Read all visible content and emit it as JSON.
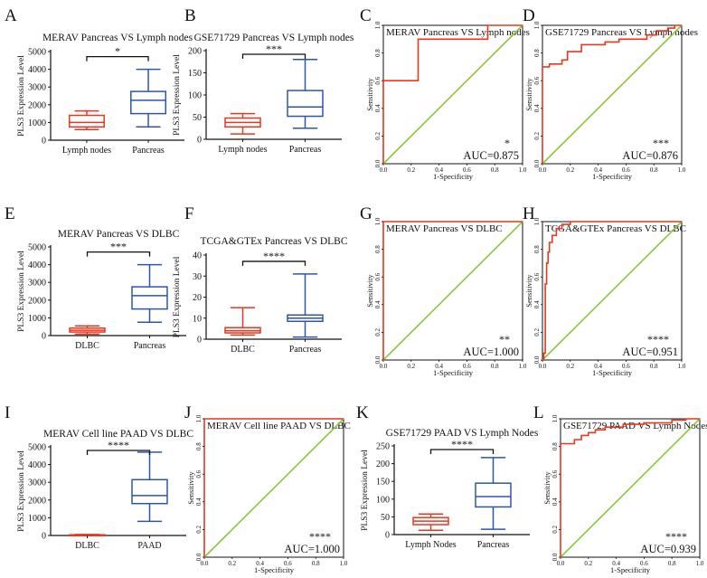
{
  "figure": {
    "colors": {
      "red": "#e8371f",
      "blue": "#2e56a6",
      "green": "#8cc63f",
      "roc": "#e8371f",
      "axis": "#111111"
    },
    "panels": [
      {
        "letter": "A",
        "type": "box",
        "title": "MERAV Pancreas VS Lymph nodes",
        "ylabel": "PLS3 Expression Level",
        "ylim": [
          0,
          5000
        ],
        "yticks": [
          "0",
          "1000",
          "2000",
          "3000",
          "4000",
          "5000"
        ],
        "sig": "*",
        "groups": [
          {
            "label": "Lymph nodes",
            "color": "red",
            "min": 600,
            "q1": 750,
            "median": 1000,
            "q3": 1400,
            "max": 1650
          },
          {
            "label": "Pancreas",
            "color": "blue",
            "min": 750,
            "q1": 1500,
            "median": 2250,
            "q3": 2750,
            "max": 4000
          }
        ]
      },
      {
        "letter": "B",
        "type": "box",
        "title": "GSE71729 Pancreas VS Lymph nodes",
        "ylabel": "PLS3 Expression Level",
        "ylim": [
          0,
          200
        ],
        "yticks": [
          "0",
          "50",
          "100",
          "150",
          "200"
        ],
        "sig": "***",
        "groups": [
          {
            "label": "Lymph nodes",
            "color": "red",
            "min": 12,
            "q1": 28,
            "median": 38,
            "q3": 48,
            "max": 58
          },
          {
            "label": "Pancreas",
            "color": "blue",
            "min": 25,
            "q1": 52,
            "median": 73,
            "q3": 110,
            "max": 180
          }
        ]
      },
      {
        "letter": "C",
        "type": "roc",
        "title": "MERAV Pancreas VS Lymph nodes",
        "sig": "*",
        "auc": "AUC=0.875",
        "xlabel": "1-Specificity",
        "ylabel": "Sensitivity",
        "xticks": [
          "0.0",
          "0.2",
          "0.4",
          "0.6",
          "0.8",
          "1.0"
        ],
        "yticks": [
          "0.0",
          "0.2",
          "0.4",
          "0.6",
          "0.8",
          "1.0"
        ],
        "curve": [
          [
            0,
            0
          ],
          [
            0,
            0.6
          ],
          [
            0.25,
            0.6
          ],
          [
            0.25,
            0.9
          ],
          [
            0.75,
            0.9
          ],
          [
            0.75,
            1
          ],
          [
            1,
            1
          ]
        ]
      },
      {
        "letter": "D",
        "type": "roc",
        "title": "GSE71729 Pancreas VS Lymph nodes",
        "sig": "***",
        "auc": "AUC=0.876",
        "xlabel": "1-Specificity",
        "ylabel": "Sensitivity",
        "xticks": [
          "0.0",
          "0.2",
          "0.4",
          "0.6",
          "0.8",
          "1.0"
        ],
        "yticks": [
          "0.0",
          "0.2",
          "0.4",
          "0.6",
          "0.8",
          "1.0"
        ],
        "curve": [
          [
            0,
            0
          ],
          [
            0,
            0.7
          ],
          [
            0.05,
            0.7
          ],
          [
            0.05,
            0.72
          ],
          [
            0.14,
            0.72
          ],
          [
            0.14,
            0.75
          ],
          [
            0.18,
            0.75
          ],
          [
            0.18,
            0.81
          ],
          [
            0.28,
            0.81
          ],
          [
            0.28,
            0.86
          ],
          [
            0.45,
            0.86
          ],
          [
            0.45,
            0.88
          ],
          [
            0.55,
            0.88
          ],
          [
            0.55,
            0.9
          ],
          [
            0.75,
            0.9
          ],
          [
            0.75,
            0.93
          ],
          [
            0.82,
            0.93
          ],
          [
            0.82,
            0.96
          ],
          [
            0.9,
            0.96
          ],
          [
            0.9,
            0.98
          ],
          [
            0.95,
            0.98
          ],
          [
            0.95,
            1
          ],
          [
            1,
            1
          ]
        ]
      },
      {
        "letter": "E",
        "type": "box",
        "title": "MERAV Pancreas VS DLBC",
        "ylabel": "PLS3 Expression Level",
        "ylim": [
          0,
          5000
        ],
        "yticks": [
          "0",
          "1000",
          "2000",
          "3000",
          "4000",
          "5000"
        ],
        "sig": "***",
        "groups": [
          {
            "label": "DLBC",
            "color": "red",
            "min": 80,
            "q1": 200,
            "median": 300,
            "q3": 420,
            "max": 550
          },
          {
            "label": "Pancreas",
            "color": "blue",
            "min": 750,
            "q1": 1500,
            "median": 2250,
            "q3": 2750,
            "max": 4000
          }
        ]
      },
      {
        "letter": "F",
        "type": "box",
        "title": "TCGA&GTEx Pancreas VS DLBC",
        "ylabel": "PLS3 Expression Level",
        "ylim": [
          0,
          40
        ],
        "yticks": [
          "0",
          "10",
          "20",
          "30",
          "40"
        ],
        "sig": "****",
        "groups": [
          {
            "label": "DLBC",
            "color": "red",
            "min": 2,
            "q1": 3,
            "median": 4,
            "q3": 5.5,
            "max": 15
          },
          {
            "label": "Pancreas",
            "color": "blue",
            "min": 1,
            "q1": 8.5,
            "median": 10,
            "q3": 11.5,
            "max": 31
          }
        ]
      },
      {
        "letter": "G",
        "type": "roc",
        "title": "MERAV Pancreas VS DLBC",
        "sig": "**",
        "auc": "AUC=1.000",
        "xlabel": "1-Specificity",
        "ylabel": "Sensitivity",
        "xticks": [
          "0.0",
          "0.2",
          "0.4",
          "0.6",
          "0.8",
          "1.0"
        ],
        "yticks": [
          "0.0",
          "0.2",
          "0.4",
          "0.6",
          "0.8",
          "1.0"
        ],
        "curve": [
          [
            0,
            0
          ],
          [
            0,
            1
          ],
          [
            1,
            1
          ]
        ]
      },
      {
        "letter": "H",
        "type": "roc",
        "title": "TCGA&GTEx Pancreas VS DLBC",
        "sig": "****",
        "auc": "AUC=0.951",
        "xlabel": "1-Specificity",
        "ylabel": "Sensitivity",
        "xticks": [
          "0.0",
          "0.2",
          "0.4",
          "0.6",
          "0.8",
          "1.0"
        ],
        "yticks": [
          "0.0",
          "0.2",
          "0.4",
          "0.6",
          "0.8",
          "1.0"
        ],
        "curve": [
          [
            0,
            0
          ],
          [
            0.01,
            0
          ],
          [
            0.01,
            0.05
          ],
          [
            0.02,
            0.05
          ],
          [
            0.02,
            0.55
          ],
          [
            0.03,
            0.55
          ],
          [
            0.03,
            0.7
          ],
          [
            0.04,
            0.7
          ],
          [
            0.04,
            0.78
          ],
          [
            0.05,
            0.78
          ],
          [
            0.05,
            0.85
          ],
          [
            0.07,
            0.85
          ],
          [
            0.07,
            0.9
          ],
          [
            0.1,
            0.9
          ],
          [
            0.1,
            0.95
          ],
          [
            0.14,
            0.95
          ],
          [
            0.14,
            0.98
          ],
          [
            0.2,
            0.98
          ],
          [
            0.2,
            1
          ],
          [
            1,
            1
          ]
        ]
      },
      {
        "letter": "I",
        "type": "box",
        "title": "MERAV Cell line PAAD VS DLBC",
        "ylabel": "PLS3 Expression Level",
        "ylim": [
          0,
          5000
        ],
        "yticks": [
          "0",
          "1000",
          "2000",
          "3000",
          "4000",
          "5000"
        ],
        "sig": "****",
        "groups": [
          {
            "label": "DLBC",
            "color": "red",
            "min": 10,
            "q1": 20,
            "median": 30,
            "q3": 40,
            "max": 60
          },
          {
            "label": "PAAD",
            "color": "blue",
            "min": 800,
            "q1": 1800,
            "median": 2250,
            "q3": 3150,
            "max": 4700
          }
        ]
      },
      {
        "letter": "J",
        "type": "roc",
        "title": "MERAV Cell line PAAD VS DLBC",
        "sig": "****",
        "auc": "AUC=1.000",
        "xlabel": "1-Specificity",
        "ylabel": "Sensitivity",
        "xticks": [
          "0.0",
          "0.2",
          "0.4",
          "0.6",
          "0.8",
          "1.0"
        ],
        "yticks": [
          "0.0",
          "0.2",
          "0.4",
          "0.6",
          "0.8",
          "1.0"
        ],
        "curve": [
          [
            0,
            0
          ],
          [
            0,
            1
          ],
          [
            1,
            1
          ]
        ]
      },
      {
        "letter": "K",
        "type": "box",
        "title": "GSE71729 PAAD VS Lymph Nodes",
        "ylabel": "PLS3 Expression Level",
        "ylim": [
          0,
          250
        ],
        "yticks": [
          "0",
          "50",
          "100",
          "150",
          "200",
          "250"
        ],
        "sig": "****",
        "groups": [
          {
            "label": "Lymph Nodes",
            "color": "red",
            "min": 12,
            "q1": 28,
            "median": 38,
            "q3": 48,
            "max": 58
          },
          {
            "label": "Pancreas",
            "color": "blue",
            "min": 15,
            "q1": 78,
            "median": 107,
            "q3": 145,
            "max": 217
          }
        ]
      },
      {
        "letter": "L",
        "type": "roc",
        "title": "GSE71729 PAAD VS Lymph Nodes",
        "sig": "****",
        "auc": "AUC=0.939",
        "xlabel": "1-Specificity",
        "ylabel": "Sensitivity",
        "xticks": [
          "0.0",
          "0.2",
          "0.4",
          "0.6",
          "0.8",
          "1.0"
        ],
        "yticks": [
          "0.0",
          "0.2",
          "0.4",
          "0.6",
          "0.8",
          "1.0"
        ],
        "curve": [
          [
            0,
            0
          ],
          [
            0,
            0.82
          ],
          [
            0.1,
            0.82
          ],
          [
            0.1,
            0.85
          ],
          [
            0.15,
            0.85
          ],
          [
            0.15,
            0.88
          ],
          [
            0.2,
            0.88
          ],
          [
            0.2,
            0.9
          ],
          [
            0.25,
            0.9
          ],
          [
            0.25,
            0.92
          ],
          [
            0.32,
            0.92
          ],
          [
            0.32,
            0.94
          ],
          [
            0.45,
            0.94
          ],
          [
            0.45,
            0.96
          ],
          [
            0.6,
            0.96
          ],
          [
            0.6,
            0.97
          ],
          [
            0.8,
            0.97
          ],
          [
            0.8,
            0.99
          ],
          [
            0.9,
            0.99
          ],
          [
            0.9,
            1
          ],
          [
            1,
            1
          ]
        ]
      }
    ]
  },
  "chart_data": [
    {
      "type": "box",
      "panel": "A",
      "title": "MERAV Pancreas VS Lymph nodes",
      "ylabel": "PLS3 Expression Level",
      "ylim": [
        0,
        5000
      ],
      "categories": [
        "Lymph nodes",
        "Pancreas"
      ],
      "significance": "*"
    },
    {
      "type": "box",
      "panel": "B",
      "title": "GSE71729 Pancreas VS Lymph nodes",
      "ylabel": "PLS3 Expression Level",
      "ylim": [
        0,
        200
      ],
      "categories": [
        "Lymph nodes",
        "Pancreas"
      ],
      "significance": "***"
    },
    {
      "type": "line",
      "panel": "C",
      "title": "MERAV Pancreas VS Lymph nodes",
      "xlabel": "1-Specificity",
      "ylabel": "Sensitivity",
      "auc": 0.875,
      "significance": "*"
    },
    {
      "type": "line",
      "panel": "D",
      "title": "GSE71729 Pancreas VS Lymph nodes",
      "xlabel": "1-Specificity",
      "ylabel": "Sensitivity",
      "auc": 0.876,
      "significance": "***"
    },
    {
      "type": "box",
      "panel": "E",
      "title": "MERAV Pancreas VS DLBC",
      "ylabel": "PLS3 Expression Level",
      "ylim": [
        0,
        5000
      ],
      "categories": [
        "DLBC",
        "Pancreas"
      ],
      "significance": "***"
    },
    {
      "type": "box",
      "panel": "F",
      "title": "TCGA&GTEx Pancreas VS DLBC",
      "ylabel": "PLS3 Expression Level",
      "ylim": [
        0,
        40
      ],
      "categories": [
        "DLBC",
        "Pancreas"
      ],
      "significance": "****"
    },
    {
      "type": "line",
      "panel": "G",
      "title": "MERAV Pancreas VS DLBC",
      "xlabel": "1-Specificity",
      "ylabel": "Sensitivity",
      "auc": 1.0,
      "significance": "**"
    },
    {
      "type": "line",
      "panel": "H",
      "title": "TCGA&GTEx Pancreas VS DLBC",
      "xlabel": "1-Specificity",
      "ylabel": "Sensitivity",
      "auc": 0.951,
      "significance": "****"
    },
    {
      "type": "box",
      "panel": "I",
      "title": "MERAV Cell line PAAD VS DLBC",
      "ylabel": "PLS3 Expression Level",
      "ylim": [
        0,
        5000
      ],
      "categories": [
        "DLBC",
        "PAAD"
      ],
      "significance": "****"
    },
    {
      "type": "line",
      "panel": "J",
      "title": "MERAV Cell line PAAD VS DLBC",
      "xlabel": "1-Specificity",
      "ylabel": "Sensitivity",
      "auc": 1.0,
      "significance": "****"
    },
    {
      "type": "box",
      "panel": "K",
      "title": "GSE71729 PAAD VS Lymph Nodes",
      "ylabel": "PLS3 Expression Level",
      "ylim": [
        0,
        250
      ],
      "categories": [
        "Lymph Nodes",
        "Pancreas"
      ],
      "significance": "****"
    },
    {
      "type": "line",
      "panel": "L",
      "title": "GSE71729 PAAD VS Lymph Nodes",
      "xlabel": "1-Specificity",
      "ylabel": "Sensitivity",
      "auc": 0.939,
      "significance": "****"
    }
  ]
}
